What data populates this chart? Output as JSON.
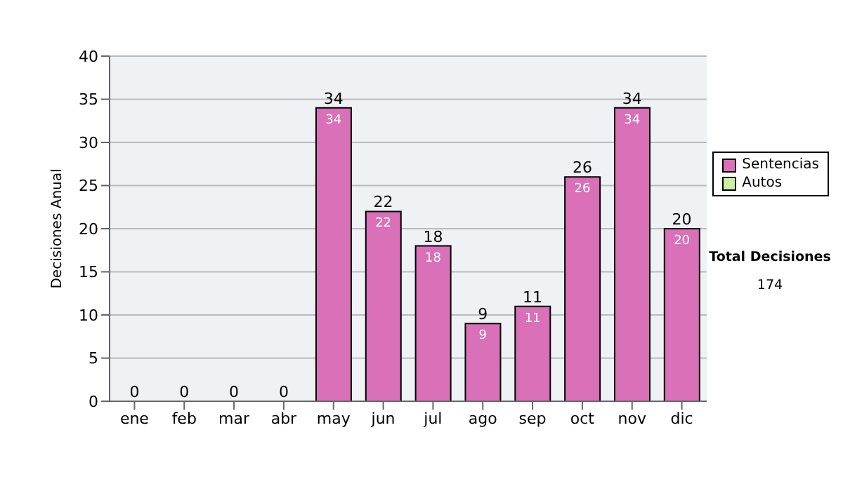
{
  "chart_data": {
    "type": "bar",
    "ylabel": "Decisiones Anual",
    "categories": [
      "ene",
      "feb",
      "mar",
      "abr",
      "may",
      "jun",
      "jul",
      "ago",
      "sep",
      "oct",
      "nov",
      "dic"
    ],
    "series": [
      {
        "name": "Sentencias",
        "color": "#d970b8",
        "values": [
          0,
          0,
          0,
          0,
          34,
          22,
          18,
          9,
          11,
          26,
          34,
          20
        ],
        "value_labels": [
          null,
          null,
          null,
          null,
          "34",
          "22",
          "18",
          "9",
          "11",
          "26",
          "34",
          "20"
        ]
      },
      {
        "name": "Autos",
        "color": "#ccf0a0",
        "values": [
          0,
          0,
          0,
          0,
          0,
          0,
          0,
          0,
          0,
          0,
          0,
          0
        ]
      }
    ],
    "stacked": true,
    "totals": [
      "0",
      "0",
      "0",
      "0",
      "34",
      "22",
      "18",
      "9",
      "11",
      "26",
      "34",
      "20"
    ],
    "ylim": [
      0,
      40
    ],
    "yticks": [
      0,
      5,
      10,
      15,
      20,
      25,
      30,
      35,
      40
    ],
    "grid": "y",
    "legend": "right",
    "annotations": [
      "Total Decisiones",
      "174"
    ]
  }
}
